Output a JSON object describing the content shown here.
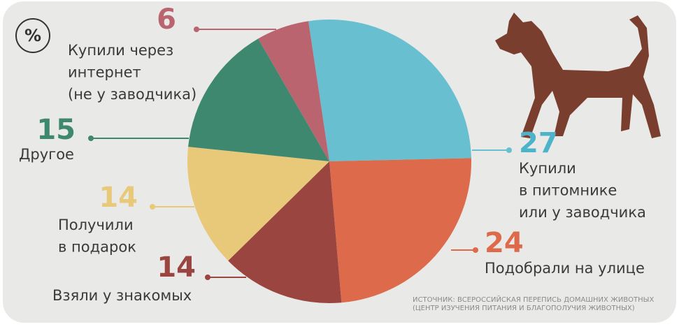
{
  "chart_data": {
    "type": "pie",
    "icon": "%",
    "categories": [
      [
        "Купили",
        "в питомнике",
        "или у заводчика"
      ],
      [
        "Подобрали на улице"
      ],
      [
        "Взяли у знакомых"
      ],
      [
        "Получили",
        "в подарок"
      ],
      [
        "Другое"
      ],
      [
        "Купили через",
        "интернет",
        "(не у заводчика)"
      ]
    ],
    "values": [
      27,
      24,
      14,
      14,
      15,
      6
    ],
    "colors": [
      "#67bfd0",
      "#dd6a4a",
      "#9a4540",
      "#e8c97a",
      "#3f8870",
      "#b9646e"
    ],
    "source": [
      "ИСТОЧНИК: ВСЕРОССИЙСКАЯ ПЕРЕПИСЬ ДОМАШНИХ ЖИВОТНЫХ",
      "(ЦЕНТР ИЗУЧЕНИЯ ПИТАНИЯ И БЛАГОПОЛУЧИЯ ЖИВОТНЫХ)"
    ]
  }
}
